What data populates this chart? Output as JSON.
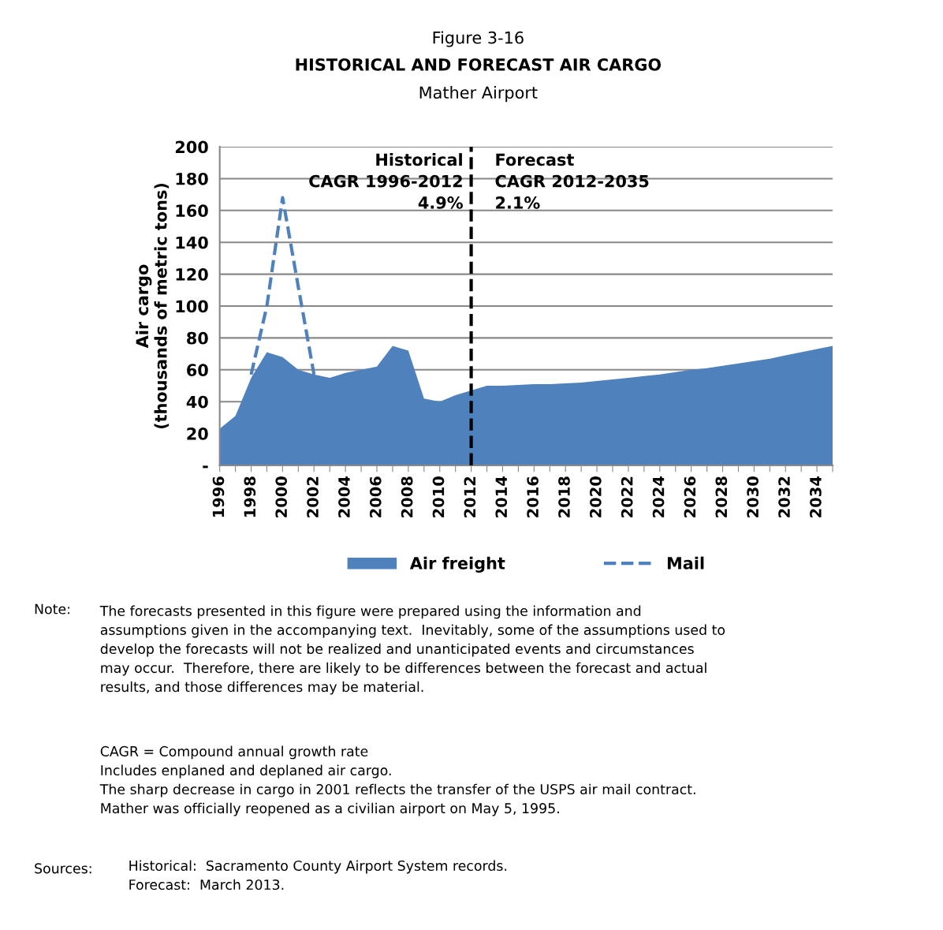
{
  "chart_data": {
    "type": "area",
    "title": "HISTORICAL AND FORECAST AIR CARGO",
    "subtitle": "Mather Airport",
    "ylabel": "Air cargo\n(thousands of metric tons)",
    "x": [
      1996,
      1997,
      1998,
      1999,
      2000,
      2001,
      2002,
      2003,
      2004,
      2005,
      2006,
      2007,
      2008,
      2009,
      2010,
      2011,
      2012,
      2013,
      2014,
      2015,
      2016,
      2017,
      2018,
      2019,
      2020,
      2021,
      2022,
      2023,
      2024,
      2025,
      2026,
      2027,
      2028,
      2029,
      2030,
      2031,
      2032,
      2033,
      2034,
      2035
    ],
    "series": [
      {
        "name": "Air freight",
        "color": "#4f81bd",
        "values": [
          23,
          31,
          55,
          71,
          68,
          60,
          57,
          55,
          58,
          60,
          62,
          75,
          72,
          42,
          40,
          44,
          47,
          50,
          50,
          50.5,
          51,
          51,
          51.5,
          52,
          53,
          54,
          55,
          56,
          57,
          58.5,
          60,
          61,
          62.5,
          64,
          65.5,
          67,
          69,
          71,
          73,
          75
        ]
      },
      {
        "name": "Mail",
        "type": "line",
        "line_style": "dashed",
        "marker": "none",
        "color": "#4f81bd",
        "x": [
          1998,
          1999,
          2000,
          2001,
          2002
        ],
        "values": [
          57,
          100,
          168,
          112,
          57
        ]
      }
    ],
    "xlim": [
      1996,
      2035
    ],
    "xticks": [
      1996,
      {
        "value": 1997,
        "label": null
      },
      1998,
      {
        "value": 1999,
        "label": null
      },
      2000,
      {
        "value": 2001,
        "label": null
      },
      2002,
      {
        "value": 2003,
        "label": null
      },
      2004,
      {
        "value": 2005,
        "label": null
      },
      2006,
      {
        "value": 2007,
        "label": null
      },
      2008,
      {
        "value": 2009,
        "label": null
      },
      2010,
      {
        "value": 2011,
        "label": null
      },
      2012,
      {
        "value": 2013,
        "label": null
      },
      2014,
      {
        "value": 2015,
        "label": null
      },
      2016,
      {
        "value": 2017,
        "label": null
      },
      2018,
      {
        "value": 2019,
        "label": null
      },
      2020,
      {
        "value": 2021,
        "label": null
      },
      2022,
      {
        "value": 2023,
        "label": null
      },
      2024,
      {
        "value": 2025,
        "label": null
      },
      2026,
      {
        "value": 2027,
        "label": null
      },
      2028,
      {
        "value": 2029,
        "label": null
      },
      2030,
      {
        "value": 2031,
        "label": null
      },
      2032,
      {
        "value": 2033,
        "label": null
      },
      2034,
      {
        "value": 2035,
        "label": null
      }
    ],
    "ylim": [
      0,
      200
    ],
    "yticks": [
      {
        "value": 0,
        "label": "-"
      },
      20,
      40,
      60,
      80,
      100,
      120,
      140,
      160,
      180,
      200
    ],
    "grid": "y",
    "legend": "bottom",
    "ref_lines": [
      {
        "axis": "x",
        "value": 2012,
        "color": "#000000",
        "line_style": "dashed"
      }
    ],
    "annotations": [
      "Figure 3-16",
      "Historical\nCAGR 1996-2012\n4.9%",
      "Forecast\nCAGR 2012-2035\n2.1%",
      "Note:",
      "The forecasts presented in this figure were prepared using the information and\nassumptions given in the accompanying text.  Inevitably, some of the assumptions used to\ndevelop the forecasts will not be realized and unanticipated events and circumstances\nmay occur.  Therefore, there are likely to be differences between the forecast and actual\nresults, and those differences may be material.",
      "CAGR = Compound annual growth rate\nIncludes enplaned and deplaned air cargo.\nThe sharp decrease in cargo in 2001 reflects the transfer of the USPS air mail contract.\nMather was officially reopened as a civilian airport on May 5, 1995.",
      "Sources:",
      "Historical:  Sacramento County Airport System records.\nForecast:  March 2013."
    ]
  }
}
